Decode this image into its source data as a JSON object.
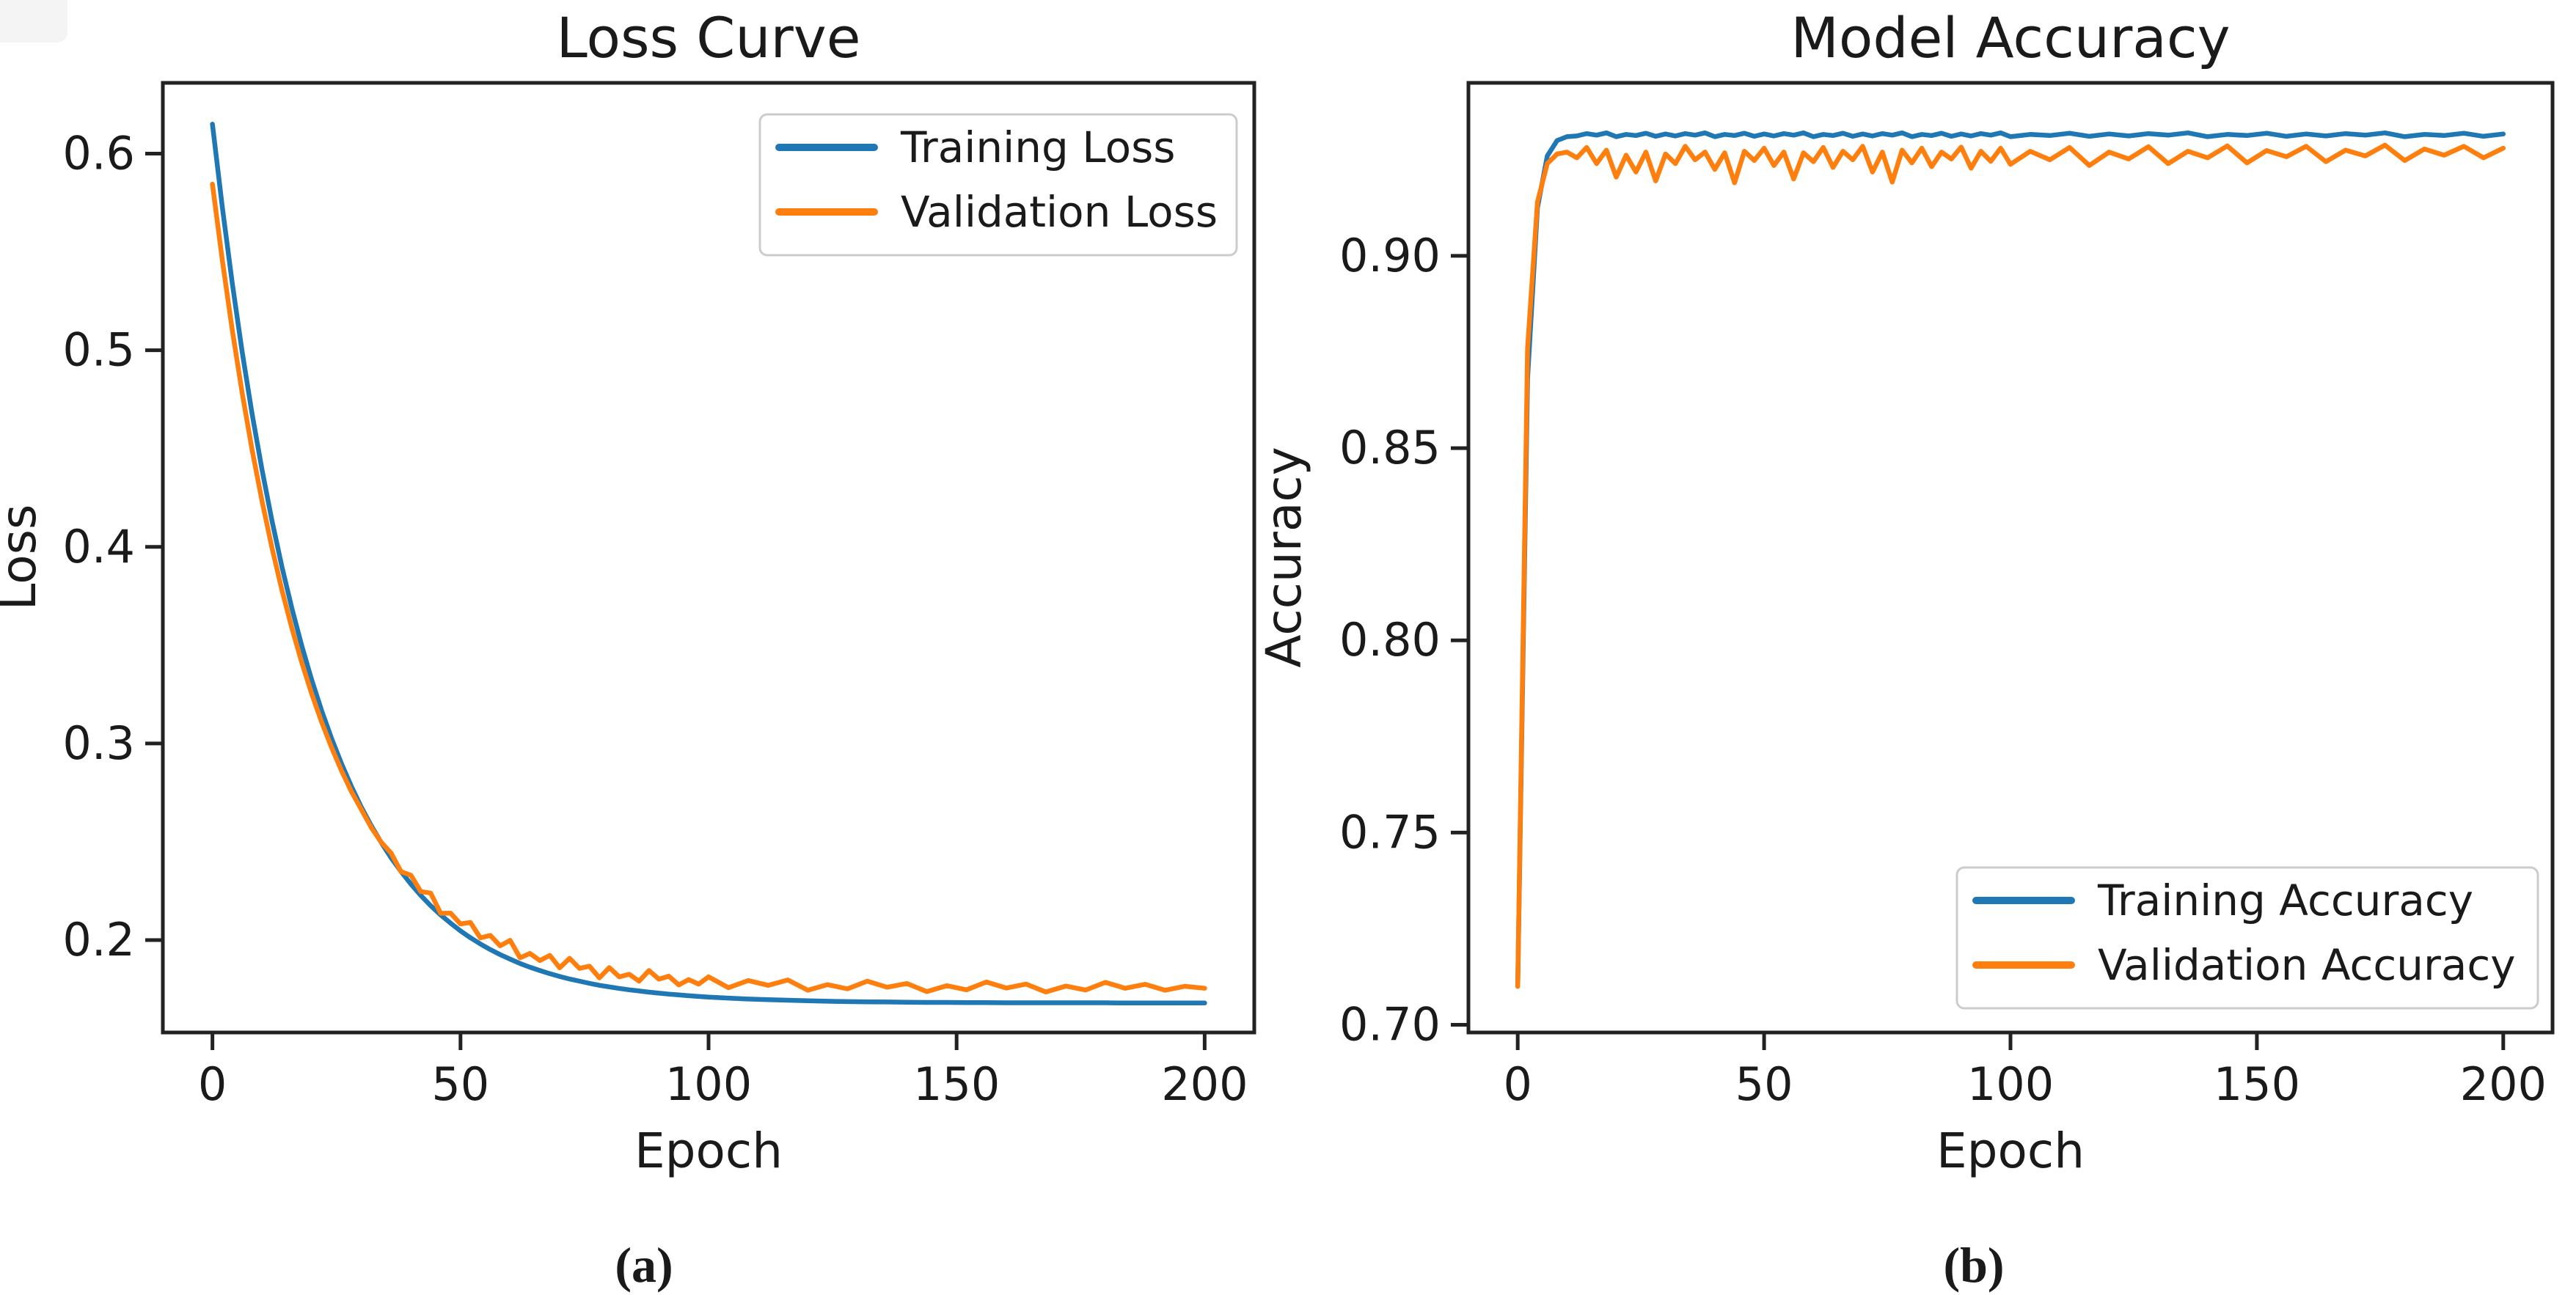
{
  "figure": {
    "background": "#ffffff",
    "captions": [
      "(a)",
      "(b)"
    ]
  },
  "colors": {
    "training": "#1f77b4",
    "validation": "#ff7f0e",
    "axis": "#222222",
    "text": "#1a1a1a",
    "legend_border": "#cccccc"
  },
  "chart_data": [
    {
      "type": "line",
      "title": "Loss Curve",
      "xlabel": "Epoch",
      "ylabel": "Loss",
      "xlim": [
        -10,
        210
      ],
      "ylim": [
        0.153,
        0.636
      ],
      "xticks": [
        0,
        50,
        100,
        150,
        200
      ],
      "xtick_labels": [
        "0",
        "50",
        "100",
        "150",
        "200"
      ],
      "yticks": [
        0.2,
        0.3,
        0.4,
        0.5,
        0.6
      ],
      "ytick_labels": [
        "0.2",
        "0.3",
        "0.4",
        "0.5",
        "0.6"
      ],
      "grid": false,
      "legend_position": "upper right",
      "x": [
        0,
        2,
        4,
        6,
        8,
        10,
        12,
        14,
        16,
        18,
        20,
        22,
        24,
        26,
        28,
        30,
        32,
        34,
        36,
        38,
        40,
        42,
        44,
        46,
        48,
        50,
        52,
        54,
        56,
        58,
        60,
        62,
        64,
        66,
        68,
        70,
        72,
        74,
        76,
        78,
        80,
        82,
        84,
        86,
        88,
        90,
        92,
        94,
        96,
        98,
        100,
        104,
        108,
        112,
        116,
        120,
        124,
        128,
        132,
        136,
        140,
        144,
        148,
        152,
        156,
        160,
        164,
        168,
        172,
        176,
        180,
        184,
        188,
        192,
        196,
        200
      ],
      "series": [
        {
          "name": "Training Loss",
          "color": "#1f77b4",
          "values": [
            0.615,
            0.5725,
            0.534,
            0.4991,
            0.4676,
            0.4391,
            0.4133,
            0.39,
            0.3688,
            0.3497,
            0.3324,
            0.3168,
            0.3026,
            0.2898,
            0.2782,
            0.2677,
            0.2582,
            0.2497,
            0.2419,
            0.2349,
            0.2285,
            0.2227,
            0.2175,
            0.2128,
            0.2086,
            0.2047,
            0.2012,
            0.198,
            0.1952,
            0.1926,
            0.1903,
            0.1881,
            0.1862,
            0.1845,
            0.1829,
            0.1815,
            0.1802,
            0.1791,
            0.178,
            0.177,
            0.1762,
            0.1754,
            0.1747,
            0.1741,
            0.1735,
            0.173,
            0.1725,
            0.1721,
            0.1717,
            0.1713,
            0.171,
            0.1705,
            0.17,
            0.1697,
            0.1694,
            0.1691,
            0.1689,
            0.1687,
            0.1686,
            0.1685,
            0.1684,
            0.1683,
            0.1683,
            0.1682,
            0.1682,
            0.1681,
            0.1681,
            0.1681,
            0.1681,
            0.1681,
            0.1681,
            0.168,
            0.168,
            0.168,
            0.168,
            0.168
          ]
        },
        {
          "name": "Validation Loss",
          "color": "#ff7f0e",
          "values": [
            0.5845,
            0.5455,
            0.5102,
            0.4782,
            0.4493,
            0.4232,
            0.3995,
            0.3781,
            0.3587,
            0.3412,
            0.3253,
            0.311,
            0.298,
            0.2862,
            0.2756,
            0.2665,
            0.2573,
            0.2498,
            0.2443,
            0.2348,
            0.233,
            0.2247,
            0.2239,
            0.2136,
            0.2137,
            0.2082,
            0.209,
            0.2011,
            0.2024,
            0.1971,
            0.1999,
            0.191,
            0.1932,
            0.1896,
            0.1922,
            0.1859,
            0.1907,
            0.1856,
            0.1867,
            0.1808,
            0.186,
            0.1813,
            0.1826,
            0.1791,
            0.1845,
            0.1801,
            0.1816,
            0.1772,
            0.1799,
            0.1776,
            0.1813,
            0.1758,
            0.1794,
            0.177,
            0.1797,
            0.1745,
            0.1773,
            0.1752,
            0.1791,
            0.176,
            0.1779,
            0.1738,
            0.1768,
            0.1747,
            0.1787,
            0.1756,
            0.1776,
            0.1736,
            0.1766,
            0.1746,
            0.1785,
            0.1755,
            0.1775,
            0.1745,
            0.1765,
            0.1755
          ]
        }
      ]
    },
    {
      "type": "line",
      "title": "Model Accuracy",
      "xlabel": "Epoch",
      "ylabel": "Accuracy",
      "xlim": [
        -10,
        210
      ],
      "ylim": [
        0.698,
        0.945
      ],
      "xticks": [
        0,
        50,
        100,
        150,
        200
      ],
      "xtick_labels": [
        "0",
        "50",
        "100",
        "150",
        "200"
      ],
      "yticks": [
        0.7,
        0.75,
        0.8,
        0.85,
        0.9
      ],
      "ytick_labels": [
        "0.70",
        "0.75",
        "0.80",
        "0.85",
        "0.90"
      ],
      "grid": false,
      "legend_position": "lower right",
      "x": [
        0,
        2,
        4,
        6,
        8,
        10,
        12,
        14,
        16,
        18,
        20,
        22,
        24,
        26,
        28,
        30,
        32,
        34,
        36,
        38,
        40,
        42,
        44,
        46,
        48,
        50,
        52,
        54,
        56,
        58,
        60,
        62,
        64,
        66,
        68,
        70,
        72,
        74,
        76,
        78,
        80,
        82,
        84,
        86,
        88,
        90,
        92,
        94,
        96,
        98,
        100,
        104,
        108,
        112,
        116,
        120,
        124,
        128,
        132,
        136,
        140,
        144,
        148,
        152,
        156,
        160,
        164,
        168,
        172,
        176,
        180,
        184,
        188,
        192,
        196,
        200
      ],
      "series": [
        {
          "name": "Training Accuracy",
          "color": "#1f77b4",
          "values": [
            0.71,
            0.868,
            0.9125,
            0.926,
            0.93,
            0.931,
            0.9312,
            0.9318,
            0.9314,
            0.932,
            0.931,
            0.9316,
            0.9313,
            0.9319,
            0.9311,
            0.9317,
            0.9312,
            0.9318,
            0.9314,
            0.932,
            0.931,
            0.9316,
            0.9313,
            0.9319,
            0.9311,
            0.9317,
            0.9312,
            0.9318,
            0.9314,
            0.932,
            0.931,
            0.9316,
            0.9313,
            0.9319,
            0.9311,
            0.9317,
            0.9312,
            0.9318,
            0.9314,
            0.932,
            0.931,
            0.9316,
            0.9313,
            0.9319,
            0.9311,
            0.9317,
            0.9312,
            0.9318,
            0.9314,
            0.932,
            0.931,
            0.9316,
            0.9313,
            0.9319,
            0.9311,
            0.9317,
            0.9312,
            0.9318,
            0.9314,
            0.932,
            0.931,
            0.9316,
            0.9313,
            0.9319,
            0.9311,
            0.9317,
            0.9312,
            0.9318,
            0.9314,
            0.932,
            0.931,
            0.9316,
            0.9313,
            0.9319,
            0.9311,
            0.9317
          ]
        },
        {
          "name": "Validation Accuracy",
          "color": "#ff7f0e",
          "values": [
            0.71,
            0.876,
            0.914,
            0.924,
            0.9265,
            0.927,
            0.9255,
            0.9282,
            0.924,
            0.9275,
            0.9205,
            0.9262,
            0.9218,
            0.927,
            0.9195,
            0.9265,
            0.924,
            0.9285,
            0.925,
            0.927,
            0.9225,
            0.9268,
            0.919,
            0.9272,
            0.9248,
            0.928,
            0.9235,
            0.927,
            0.92,
            0.9268,
            0.9245,
            0.9282,
            0.923,
            0.9272,
            0.925,
            0.9285,
            0.9218,
            0.927,
            0.9192,
            0.9275,
            0.9242,
            0.928,
            0.9232,
            0.927,
            0.9252,
            0.9283,
            0.9228,
            0.9272,
            0.9246,
            0.928,
            0.9238,
            0.9272,
            0.925,
            0.9282,
            0.9235,
            0.927,
            0.9252,
            0.9284,
            0.924,
            0.9272,
            0.9255,
            0.9286,
            0.9242,
            0.9274,
            0.9258,
            0.9285,
            0.9245,
            0.9275,
            0.926,
            0.9288,
            0.9248,
            0.9278,
            0.9262,
            0.9285,
            0.9255,
            0.928
          ]
        }
      ]
    }
  ]
}
